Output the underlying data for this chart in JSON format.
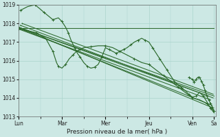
{
  "bg_color": "#cce8e4",
  "grid_color": "#aad4cc",
  "line_color": "#2d6a2d",
  "xlabel": "Pression niveau de la mer( hPa )",
  "ylim": [
    1013,
    1019
  ],
  "yticks": [
    1013,
    1014,
    1015,
    1016,
    1017,
    1018,
    1019
  ],
  "xtick_labels": [
    "Lun",
    "Mar",
    "Mer",
    "Jeu",
    "Ven",
    "Sa"
  ],
  "xtick_positions": [
    0,
    48,
    96,
    144,
    192,
    216
  ],
  "x_total": 218,
  "straight_lines": [
    {
      "x0": 0,
      "y0": 1017.75,
      "x1": 216,
      "y1": 1017.75
    },
    {
      "x0": 0,
      "y0": 1017.8,
      "x1": 210,
      "y1": 1014.1
    },
    {
      "x0": 0,
      "y0": 1017.7,
      "x1": 212,
      "y1": 1013.9
    },
    {
      "x0": 0,
      "y0": 1017.8,
      "x1": 213,
      "y1": 1013.5
    },
    {
      "x0": 0,
      "y0": 1017.75,
      "x1": 214,
      "y1": 1013.6
    },
    {
      "x0": 2,
      "y0": 1017.9,
      "x1": 215,
      "y1": 1014.0
    },
    {
      "x0": 4,
      "y0": 1018.0,
      "x1": 215,
      "y1": 1014.2
    },
    {
      "x0": 0,
      "y0": 1017.8,
      "x1": 216,
      "y1": 1014.1
    }
  ],
  "wiggly_line": {
    "x": [
      2,
      10,
      18,
      22,
      28,
      33,
      38,
      44,
      48,
      52,
      55,
      58,
      62,
      65,
      68,
      72,
      76,
      80,
      84,
      88,
      92,
      96,
      100,
      104,
      108,
      112,
      116,
      120,
      124,
      128,
      132,
      136,
      140,
      144,
      148,
      152,
      156,
      160,
      164,
      168,
      172,
      176,
      180,
      184,
      188,
      192,
      196,
      200,
      204,
      208,
      212,
      216
    ],
    "y": [
      1018.7,
      1018.9,
      1019.0,
      1018.85,
      1018.6,
      1018.4,
      1018.2,
      1018.3,
      1018.1,
      1017.8,
      1017.5,
      1017.1,
      1016.7,
      1016.4,
      1016.2,
      1015.9,
      1015.7,
      1015.6,
      1015.65,
      1015.8,
      1016.2,
      1016.7,
      1016.6,
      1016.5,
      1016.4,
      1016.5,
      1016.6,
      1016.7,
      1016.85,
      1017.0,
      1017.1,
      1017.2,
      1017.1,
      1017.0,
      1016.7,
      1016.4,
      1016.1,
      1015.8,
      1015.5,
      1015.2,
      1014.9,
      1014.7,
      1014.55,
      1014.4,
      1014.2,
      1014.05,
      1014.1,
      1014.3,
      1014.1,
      1013.8,
      1013.45,
      1013.2
    ]
  },
  "dip_line": {
    "x": [
      0,
      10,
      20,
      30,
      38,
      42,
      44,
      48,
      52,
      56,
      60,
      64,
      68,
      72,
      80,
      88,
      96,
      104,
      112,
      120,
      128,
      136,
      144,
      152,
      160,
      168,
      176,
      184,
      192,
      200,
      208,
      212,
      216
    ],
    "y": [
      1017.7,
      1017.6,
      1017.5,
      1017.2,
      1016.5,
      1015.9,
      1015.7,
      1015.6,
      1015.8,
      1016.1,
      1016.3,
      1016.5,
      1016.6,
      1016.7,
      1016.75,
      1016.8,
      1016.8,
      1016.7,
      1016.5,
      1016.3,
      1016.1,
      1015.9,
      1015.8,
      1015.5,
      1015.2,
      1014.9,
      1014.6,
      1014.3,
      1014.0,
      1013.9,
      1013.7,
      1013.5,
      1013.3
    ]
  },
  "ven_sa_line": {
    "x": [
      188,
      192,
      194,
      196,
      198,
      200,
      202,
      204,
      206,
      208,
      210,
      212,
      214,
      216
    ],
    "y": [
      1015.1,
      1015.0,
      1014.85,
      1015.0,
      1015.1,
      1015.1,
      1014.9,
      1014.7,
      1014.4,
      1014.1,
      1013.9,
      1013.7,
      1013.5,
      1013.3
    ]
  }
}
